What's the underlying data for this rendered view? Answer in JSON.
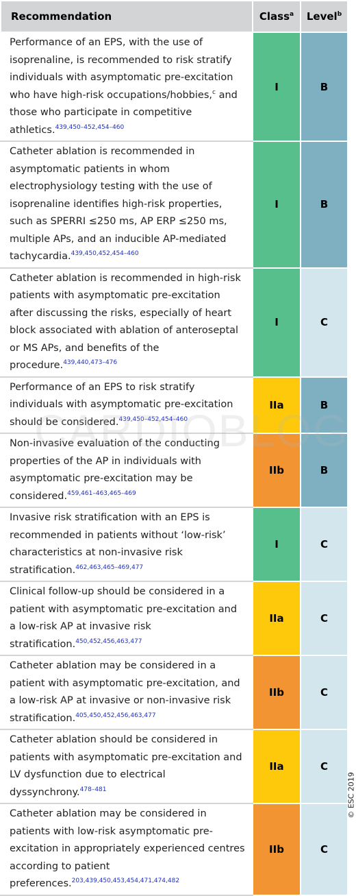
{
  "header": {
    "recommendation": "Recommendation",
    "class": "Class",
    "class_note": "a",
    "level": "Level",
    "level_note": "b"
  },
  "table": {
    "rows": [
      {
        "text": "Performance of an EPS, with the use of isoprenaline, is recommended to risk stratify individuals with asymptomatic pre-excitation who have high-risk occupations/hobbies,",
        "note": "c",
        "text_after": " and those who participate in competitive athletics.",
        "refs": "439,450–452,454–460",
        "class": "I",
        "level": "B",
        "class_color": "#56bf8b",
        "level_color": "#7eb0c2"
      },
      {
        "text": "Catheter ablation is recommended in asymptomatic patients in whom electrophysiology testing with the use of isoprenaline identifies high-risk properties, such as SPERRI ≤250 ms, AP ERP ≤250 ms, multiple APs, and an inducible AP-mediated tachycardia.",
        "refs": "439,450,452,454–460",
        "class": "I",
        "level": "B",
        "class_color": "#56bf8b",
        "level_color": "#7eb0c2"
      },
      {
        "text": "Catheter ablation is recommended in high-risk patients with asymptomatic pre-excitation after discussing the risks, especially of heart block associated with ablation of anteroseptal or MS APs, and benefits of the procedure.",
        "refs": "439,440,473–476",
        "class": "I",
        "level": "C",
        "class_color": "#56bf8b",
        "level_color": "#d4e6ed"
      },
      {
        "text": "Performance of an EPS to risk stratify individuals with asymptomatic pre-excitation should be considered.",
        "refs": "439,450–452,454–460",
        "class": "IIa",
        "level": "B",
        "class_color": "#fdc90a",
        "level_color": "#7eb0c2"
      },
      {
        "text": "Non-invasive evaluation of the conducting properties of the AP in individuals with asymptomatic pre-excitation may be considered.",
        "refs": "459,461–463,465–469",
        "class": "IIb",
        "level": "B",
        "class_color": "#f39432",
        "level_color": "#7eb0c2"
      },
      {
        "text": "Invasive risk stratification with an EPS is recommended in patients without ‘low-risk’ characteristics at non-invasive risk stratification.",
        "refs": "462,463,465–469,477",
        "class": "I",
        "level": "C",
        "class_color": "#56bf8b",
        "level_color": "#d4e6ed"
      },
      {
        "text": "Clinical follow-up should be considered in a patient with asymptomatic pre-excitation and a low-risk AP at invasive risk stratification.",
        "refs": "450,452,456,463,477",
        "class": "IIa",
        "level": "C",
        "class_color": "#fdc90a",
        "level_color": "#d4e6ed"
      },
      {
        "text": "Catheter ablation may be considered in a patient with asymptomatic pre-excitation, and a low-risk AP at invasive or non-invasive risk stratification.",
        "refs": "405,450,452,456,463,477",
        "class": "IIb",
        "level": "C",
        "class_color": "#f39432",
        "level_color": "#d4e6ed"
      },
      {
        "text": "Catheter ablation should be considered in patients with asymptomatic pre-excitation and LV dysfunction due to electrical dyssynchrony.",
        "refs": "478–481",
        "class": "IIa",
        "level": "C",
        "class_color": "#fdc90a",
        "level_color": "#d4e6ed"
      },
      {
        "text": "Catheter ablation may be considered in patients with low-risk asymptomatic pre-excitation in appropriately experienced centres according to patient preferences.",
        "refs": "203,439,450,453,454,471,474,482",
        "class": "IIb",
        "level": "C",
        "class_color": "#f39432",
        "level_color": "#d4e6ed"
      }
    ]
  },
  "watermark": "CARDIOBLOG",
  "copyright": "© ESC 2019"
}
